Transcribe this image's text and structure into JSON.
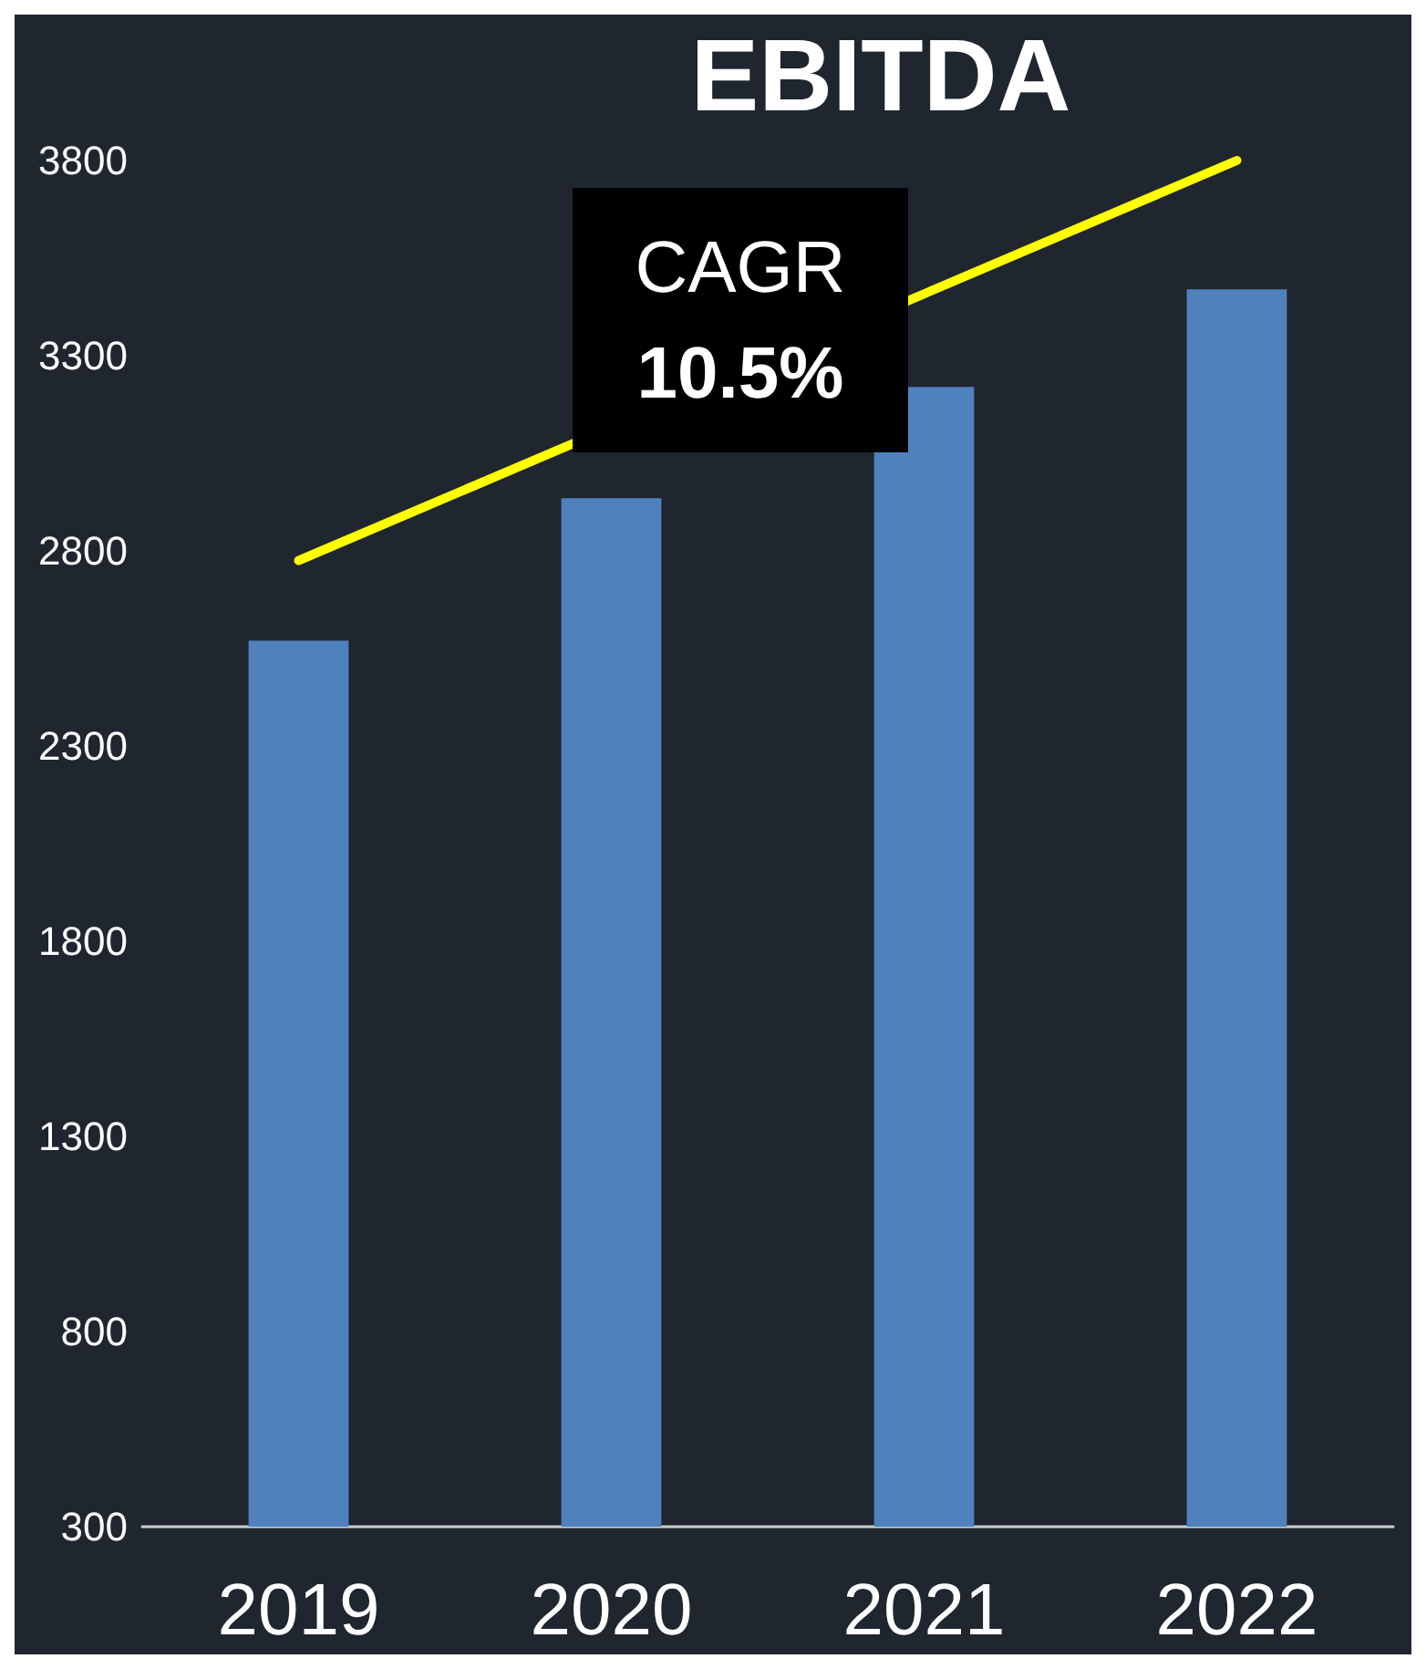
{
  "chart_data": {
    "type": "bar",
    "title": "EBITDA",
    "categories": [
      "2019",
      "2020",
      "2021",
      "2022"
    ],
    "series": [
      {
        "color": "#4f81bd",
        "values": [
          2570,
          2935,
          3220,
          3470
        ]
      },
      {
        "type": "line",
        "color": "#ffff00",
        "values": [
          2775,
          null,
          null,
          3800
        ]
      }
    ],
    "marker": "none",
    "line_style": "solid",
    "ylim": [
      300,
      3800
    ],
    "yticks": [
      300,
      800,
      1300,
      1800,
      2300,
      2800,
      3300,
      3800
    ],
    "grid": false,
    "annotations": [
      "CAGR",
      "10.5%"
    ]
  }
}
